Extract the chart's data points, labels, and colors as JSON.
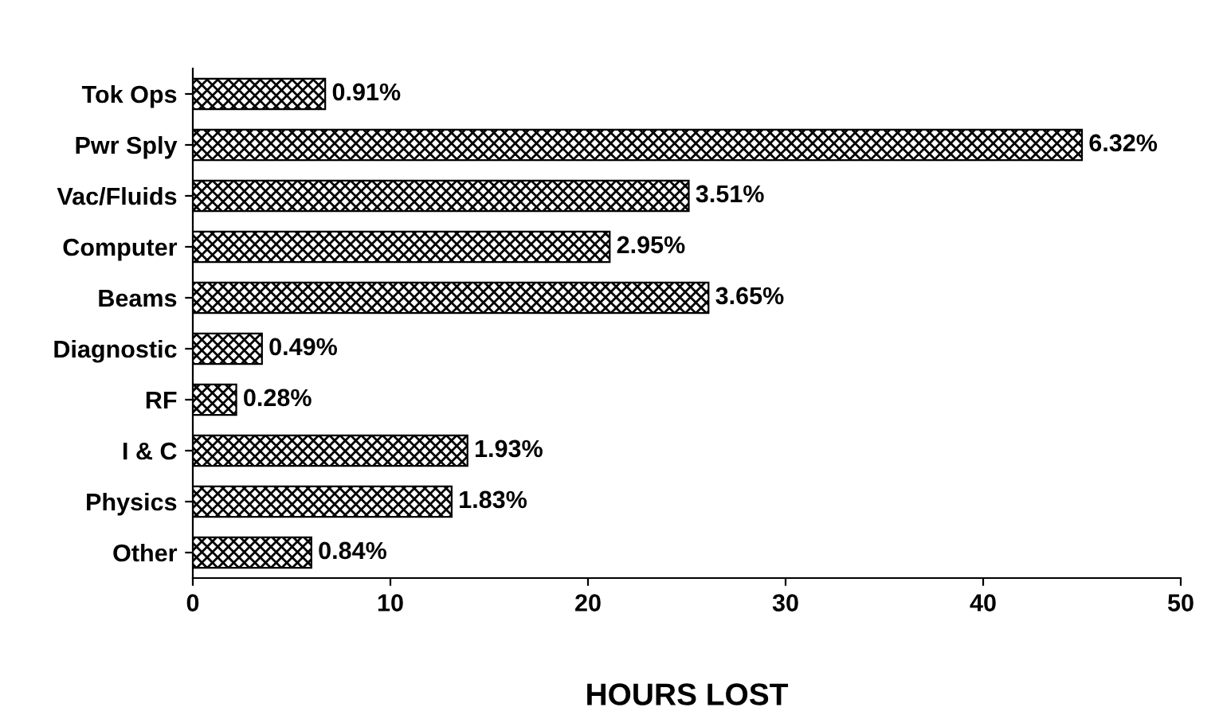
{
  "chart_data": {
    "type": "bar",
    "orientation": "horizontal",
    "xlabel": "HOURS LOST",
    "categories": [
      "Tok Ops",
      "Pwr Sply",
      "Vac/Fluids",
      "Computer",
      "Beams",
      "Diagnostic",
      "RF",
      "I & C",
      "Physics",
      "Other"
    ],
    "values": [
      6.7,
      45.0,
      25.1,
      21.1,
      26.1,
      3.5,
      2.2,
      13.9,
      13.1,
      6.0
    ],
    "annotations": [
      {
        "text": "0.91%",
        "x": 6.7,
        "y": "Tok Ops"
      },
      {
        "text": "6.32%",
        "x": 45.0,
        "y": "Pwr Sply"
      },
      {
        "text": "3.51%",
        "x": 25.1,
        "y": "Vac/Fluids"
      },
      {
        "text": "2.95%",
        "x": 21.1,
        "y": "Computer"
      },
      {
        "text": "3.65%",
        "x": 26.1,
        "y": "Beams"
      },
      {
        "text": "0.49%",
        "x": 3.5,
        "y": "Diagnostic"
      },
      {
        "text": "0.28%",
        "x": 2.2,
        "y": "RF"
      },
      {
        "text": "1.93%",
        "x": 13.9,
        "y": "I & C"
      },
      {
        "text": "1.83%",
        "x": 13.1,
        "y": "Physics"
      },
      {
        "text": "0.84%",
        "x": 6.0,
        "y": "Other"
      }
    ],
    "color": "#000000",
    "xlim": [
      0,
      50
    ],
    "xticks": [
      0,
      10,
      20,
      30,
      40,
      50
    ],
    "grid": false,
    "legend": false
  }
}
